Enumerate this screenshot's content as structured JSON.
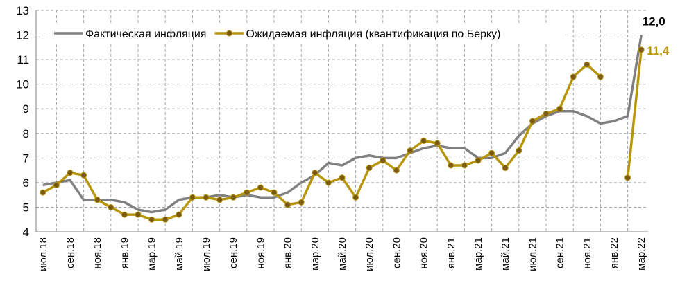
{
  "chart_data": {
    "type": "line",
    "categories": [
      "июл.18",
      null,
      "сен.18",
      null,
      "ноя.18",
      null,
      "янв.19",
      null,
      "мар.19",
      null,
      "май.19",
      null,
      "июл.19",
      null,
      "сен.19",
      null,
      "ноя.19",
      null,
      "янв.20",
      null,
      "мар.20",
      null,
      "май.20",
      null,
      "июл.20",
      null,
      "сен.20",
      null,
      "ноя.20",
      null,
      "янв.21",
      null,
      "мар.21",
      null,
      "май.21",
      null,
      "июл.21",
      null,
      "сен.21",
      null,
      "ноя.21",
      null,
      "янв.22",
      null,
      "мар.22"
    ],
    "series": [
      {
        "name": "Фактическая инфляция",
        "color": "#808080",
        "values": [
          5.9,
          6.0,
          6.1,
          5.3,
          5.3,
          5.3,
          5.2,
          4.9,
          4.8,
          4.9,
          5.3,
          5.4,
          5.4,
          5.5,
          5.4,
          5.5,
          5.4,
          5.4,
          5.6,
          6.0,
          6.3,
          6.8,
          6.7,
          7.0,
          7.1,
          7.0,
          7.0,
          7.2,
          7.4,
          7.5,
          7.4,
          7.4,
          7.0,
          7.0,
          7.2,
          7.9,
          8.4,
          8.7,
          8.9,
          8.9,
          8.7,
          8.4,
          8.5,
          8.7,
          12.0
        ],
        "value_labels": [
          null,
          null,
          null,
          null,
          null,
          null,
          null,
          null,
          null,
          null,
          null,
          null,
          null,
          null,
          null,
          null,
          null,
          null,
          null,
          null,
          null,
          null,
          null,
          null,
          null,
          null,
          null,
          null,
          null,
          null,
          null,
          null,
          null,
          null,
          null,
          null,
          null,
          null,
          null,
          null,
          null,
          null,
          null,
          null,
          "12,0"
        ]
      },
      {
        "name": "Ожидаемая инфляция (квантификация по Берку)",
        "color": "#b8960c",
        "values": [
          5.6,
          5.9,
          6.4,
          6.3,
          5.3,
          5.0,
          4.7,
          4.7,
          4.5,
          4.5,
          4.7,
          5.4,
          5.4,
          5.3,
          5.4,
          5.6,
          5.8,
          5.6,
          5.1,
          5.2,
          6.4,
          6.0,
          6.2,
          5.4,
          6.6,
          6.9,
          6.5,
          7.3,
          7.7,
          7.6,
          6.7,
          6.7,
          6.9,
          7.2,
          6.6,
          7.3,
          8.5,
          8.8,
          9.0,
          10.3,
          10.8,
          10.3,
          null,
          6.2,
          11.4
        ],
        "value_labels": [
          null,
          null,
          null,
          null,
          null,
          null,
          null,
          null,
          null,
          null,
          null,
          null,
          null,
          null,
          null,
          null,
          null,
          null,
          null,
          null,
          null,
          null,
          null,
          null,
          null,
          null,
          null,
          null,
          null,
          null,
          null,
          null,
          null,
          null,
          null,
          null,
          null,
          null,
          null,
          null,
          null,
          null,
          null,
          null,
          "11,4"
        ]
      }
    ],
    "ylim": [
      4,
      13
    ],
    "yticks": [
      4,
      5,
      6,
      7,
      8,
      9,
      10,
      11,
      12,
      13
    ],
    "grid": true,
    "legend": "top-left"
  }
}
